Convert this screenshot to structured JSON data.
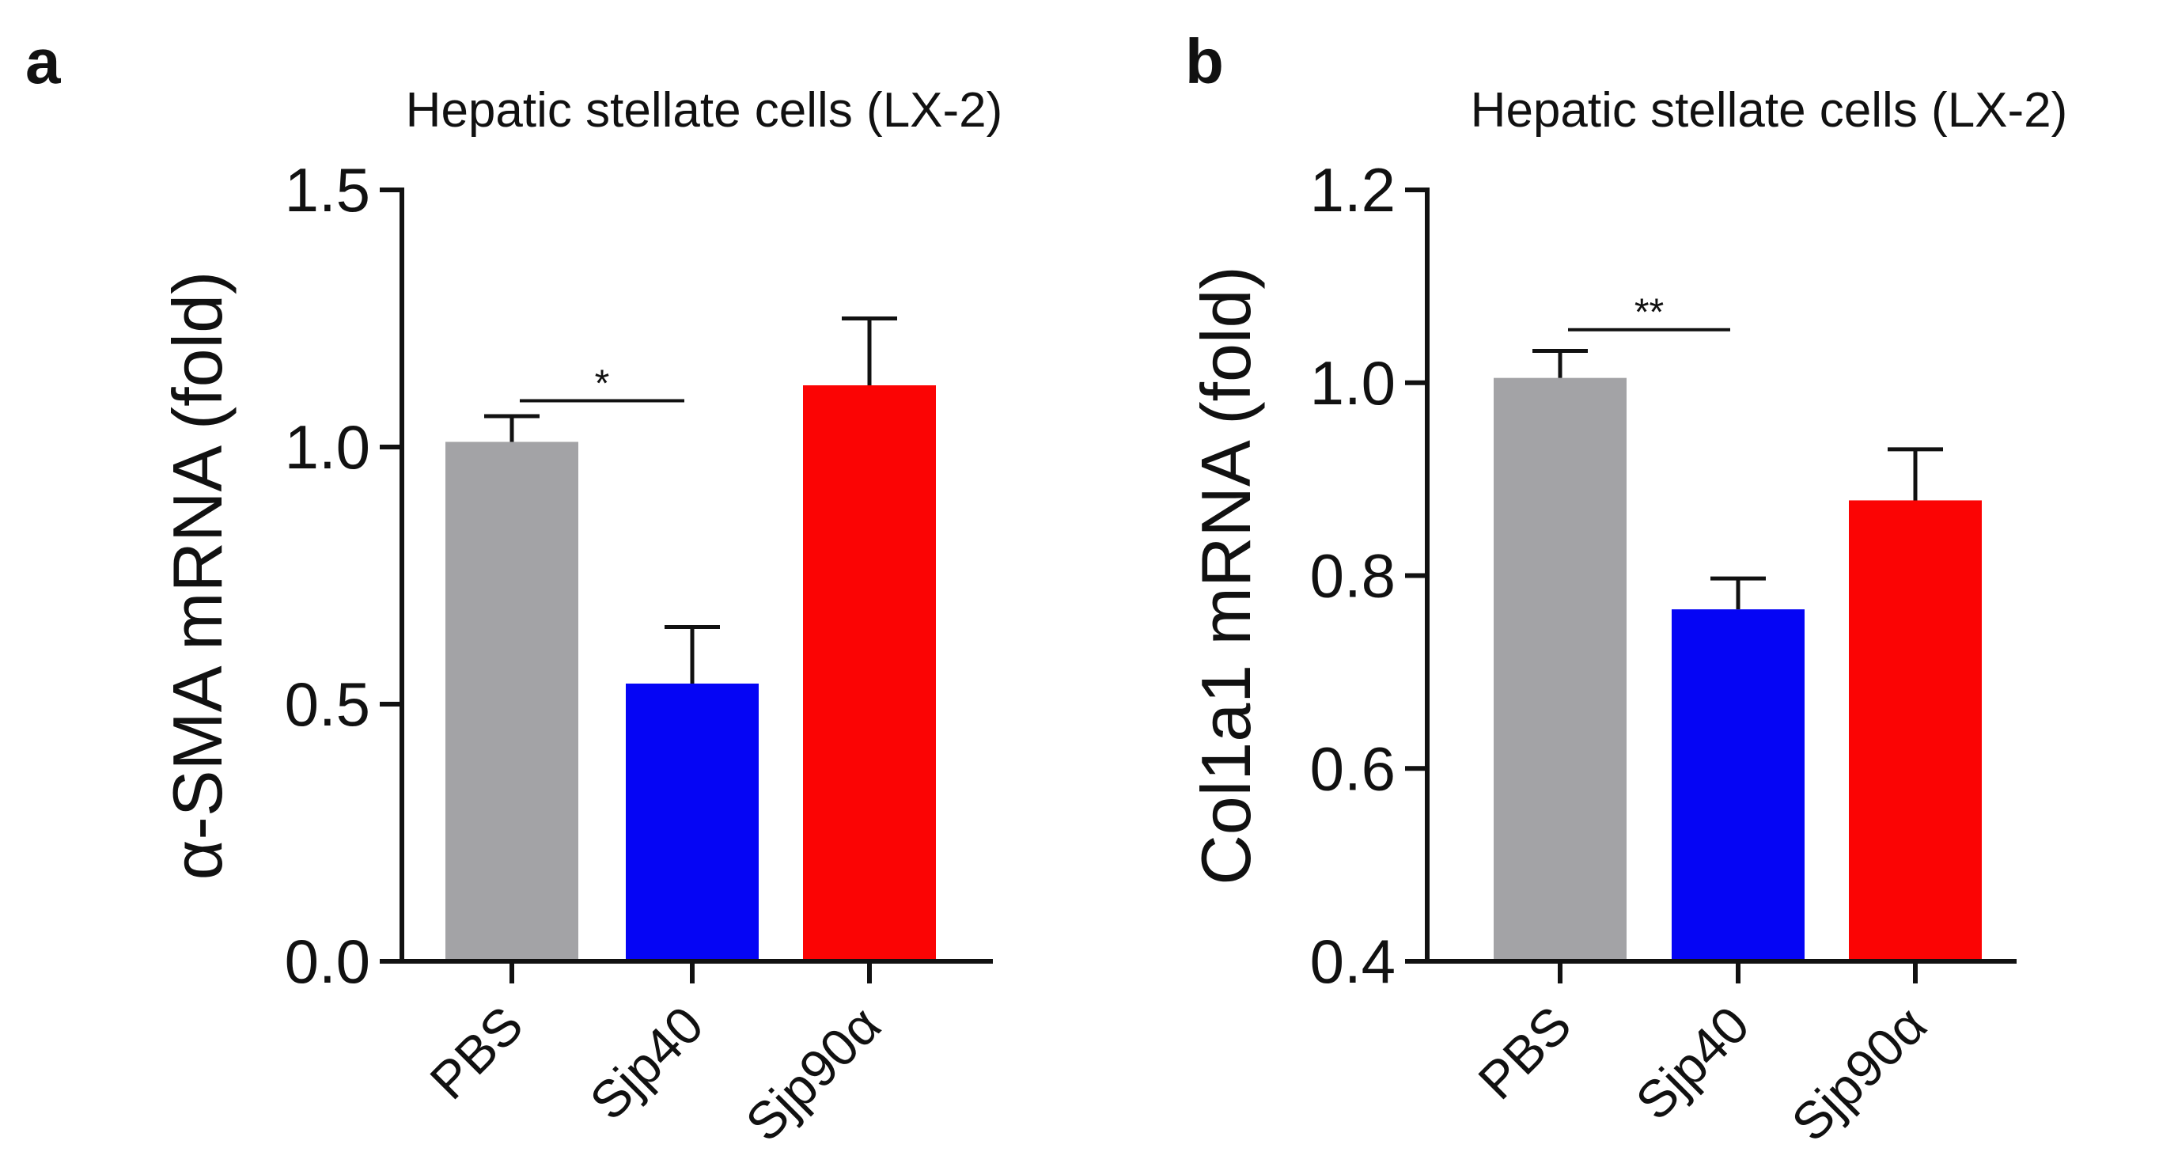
{
  "chart_data": [
    {
      "type": "bar",
      "panel": "a",
      "title": "Hepatic stellate cells (LX-2)",
      "xlabel": "",
      "ylabel": "α-SMA mRNA (fold)",
      "ylim": [
        0.0,
        1.5
      ],
      "yticks": [
        0.0,
        0.5,
        1.0,
        1.5
      ],
      "ytick_labels": [
        "0.0",
        "0.5",
        "1.0",
        "1.5"
      ],
      "categories": [
        "PBS",
        "Sjp40",
        "Sjp90α"
      ],
      "values": [
        1.01,
        0.54,
        1.12
      ],
      "errors": [
        0.05,
        0.11,
        0.13
      ],
      "colors": [
        "#a3a3a6",
        "#0505f5",
        "#fb0404"
      ],
      "significance": [
        {
          "from": 0,
          "to": 1,
          "label": "*",
          "y": 1.09
        }
      ],
      "grid": false,
      "legend": "none"
    },
    {
      "type": "bar",
      "panel": "b",
      "title": "Hepatic stellate cells (LX-2)",
      "xlabel": "",
      "ylabel": "Col1a1 mRNA (fold)",
      "ylim": [
        0.4,
        1.2
      ],
      "yticks": [
        0.4,
        0.6,
        0.8,
        1.0,
        1.2
      ],
      "ytick_labels": [
        "0.4",
        "0.6",
        "0.8",
        "1.0",
        "1.2"
      ],
      "categories": [
        "PBS",
        "Sjp40",
        "Sjp90α"
      ],
      "values": [
        1.005,
        0.765,
        0.878
      ],
      "errors": [
        0.028,
        0.032,
        0.053
      ],
      "colors": [
        "#a3a3a6",
        "#0505f5",
        "#fb0404"
      ],
      "significance": [
        {
          "from": 0,
          "to": 1,
          "label": "**",
          "y": 1.055
        }
      ],
      "grid": false,
      "legend": "none"
    }
  ]
}
